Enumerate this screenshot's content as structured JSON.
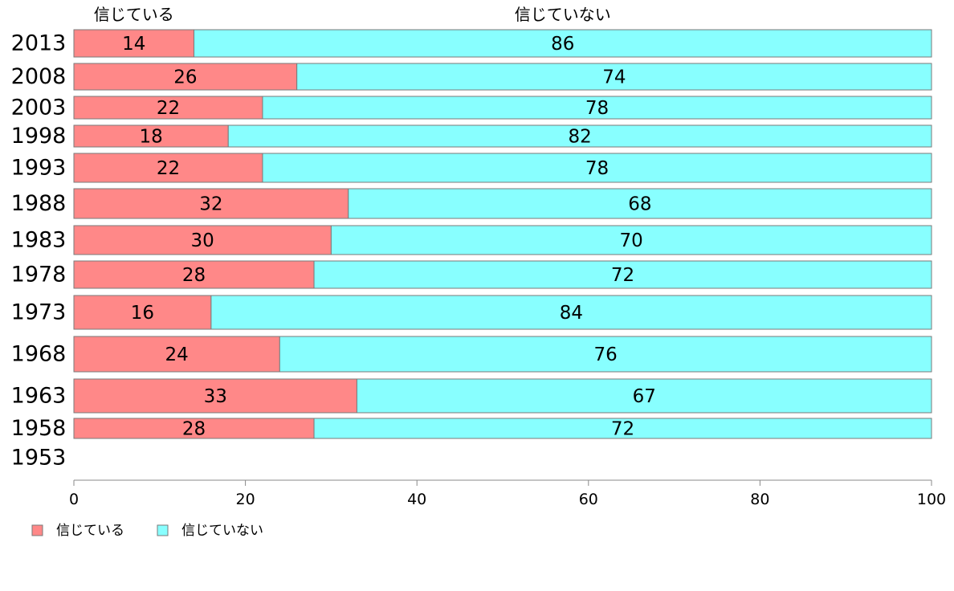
{
  "chart_data": {
    "type": "bar",
    "orientation": "horizontal",
    "stacked": true,
    "categories": [
      "2013",
      "2008",
      "2003",
      "1998",
      "1993",
      "1988",
      "1983",
      "1978",
      "1973",
      "1968",
      "1963",
      "1958",
      "1953"
    ],
    "series": [
      {
        "name": "信じている",
        "values": [
          14,
          26,
          22,
          18,
          22,
          32,
          30,
          28,
          16,
          24,
          33,
          28,
          null
        ],
        "color": "#ff8888"
      },
      {
        "name": "信じていない",
        "values": [
          86,
          74,
          78,
          82,
          78,
          68,
          70,
          72,
          84,
          76,
          67,
          72,
          null
        ],
        "color": "#88ffff"
      }
    ],
    "xlim": [
      0,
      100
    ],
    "xticks": [
      0,
      20,
      40,
      60,
      80,
      100
    ],
    "xlabel": "",
    "ylabel": "",
    "grid": false,
    "legend_position": "bottom-left"
  }
}
